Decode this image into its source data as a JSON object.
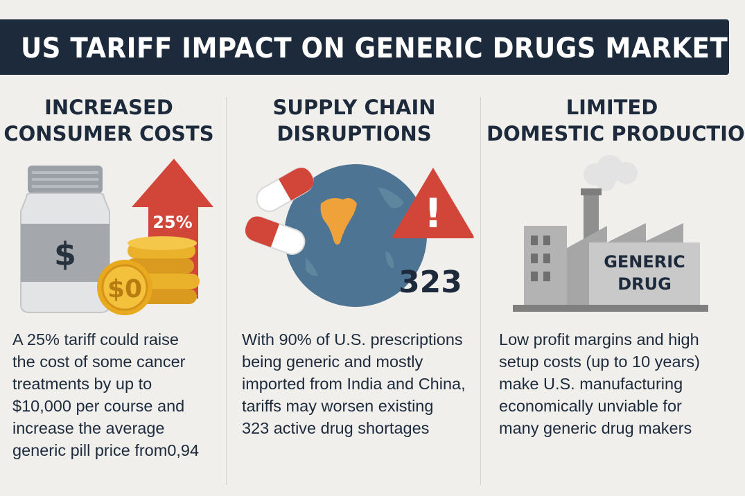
{
  "header": {
    "title": "US TARIFF IMPACT ON GENERIC DRUGS MARKET"
  },
  "columns": [
    {
      "title_lines": [
        "INCREASED",
        "CONSUMER COSTS"
      ],
      "icon_labels": {
        "bottle": "$",
        "arrow": "25%",
        "coin": "$0"
      },
      "body_lines": [
        "A 25% tariff could raise",
        "the cost of some cancer",
        "treatments by up to",
        "$10,000 per course and",
        "increase the average",
        "generic pill price from0,94"
      ]
    },
    {
      "title_lines": [
        "SUPPLY CHAIN",
        "DISRUPTIONS"
      ],
      "icon_labels": {
        "warning": "!",
        "count": "323"
      },
      "body_lines": [
        "With 90% of U.S. prescriptions",
        "being generic and mostly",
        "imported from India and China,",
        "tariffs may worsen existing",
        "323 active drug shortages"
      ]
    },
    {
      "title_lines": [
        "LIMITED",
        "DOMESTIC PRODUCTION"
      ],
      "icon_labels": {
        "factory_line1": "GENERIC",
        "factory_line2": "DRUG"
      },
      "body_lines": [
        "Low profit margins and high",
        "setup costs (up to 10 years)",
        "make U.S. manufacturing",
        "economically unviable for",
        "many generic drug makers"
      ]
    }
  ],
  "colors": {
    "navy": "#1c2a3c",
    "background": "#f1efec",
    "red": "#d2463a",
    "gold": "#eab12a",
    "globe_blue": "#4d7593",
    "india_orange": "#f0a23a",
    "factory_gray": "#9a9a9a"
  }
}
